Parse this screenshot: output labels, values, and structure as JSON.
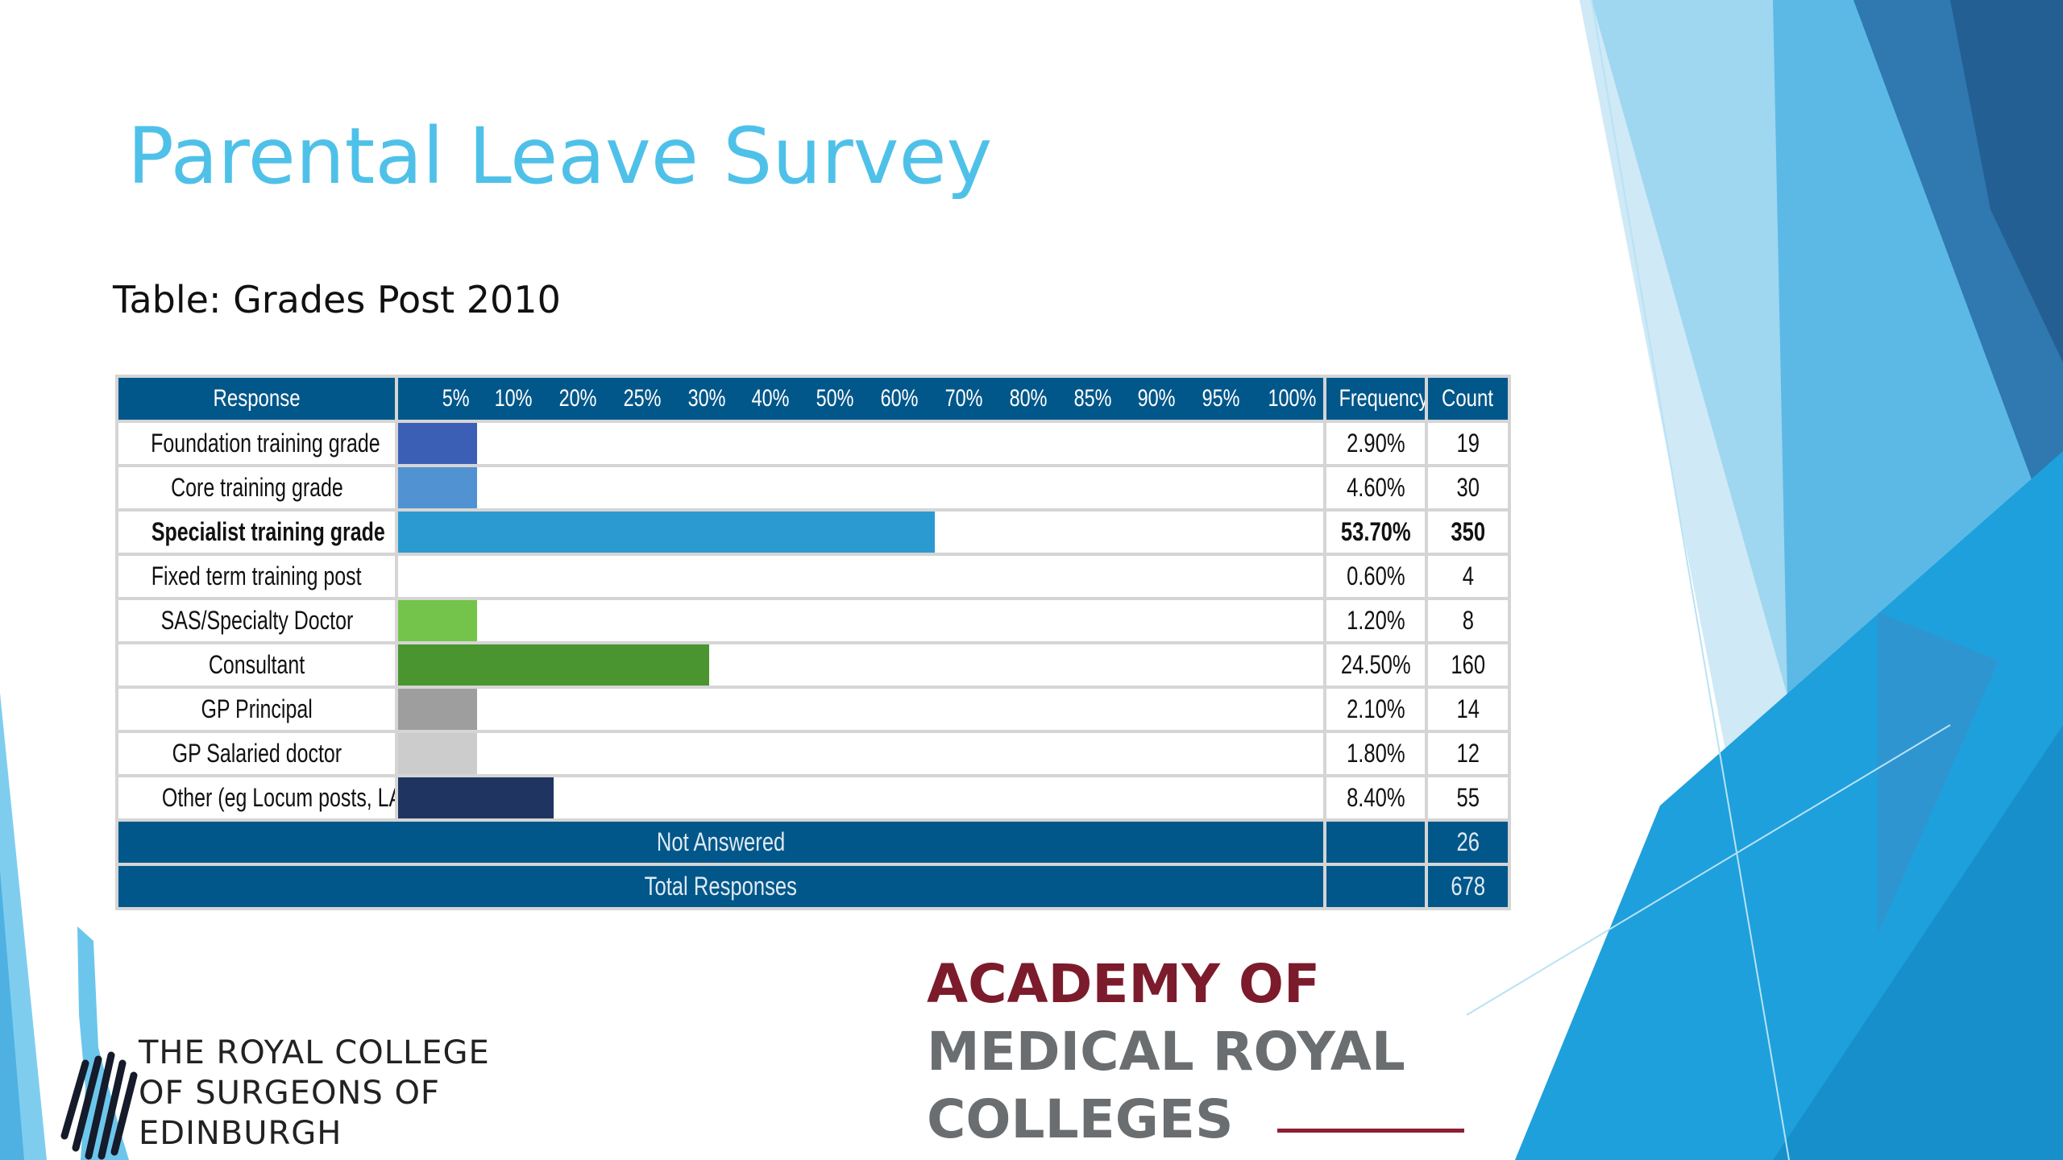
{
  "slide": {
    "title": "Parental Leave Survey",
    "subtitle": "Table: Grades Post 2010"
  },
  "table": {
    "headers": {
      "response": "Response",
      "scale": [
        "5%",
        "10%",
        "20%",
        "25%",
        "30%",
        "40%",
        "50%",
        "60%",
        "70%",
        "80%",
        "85%",
        "90%",
        "95%",
        "100%"
      ],
      "frequency": "Frequency",
      "count": "Count"
    },
    "rows": [
      {
        "label": "Foundation training grade",
        "frequency": "2.90%",
        "count": "19",
        "bar_fraction": 0.085,
        "color": "#3c5fb6",
        "bold": false
      },
      {
        "label": "Core training grade",
        "frequency": "4.60%",
        "count": "30",
        "bar_fraction": 0.085,
        "color": "#5192d3",
        "bold": false
      },
      {
        "label": "Specialist training grade",
        "frequency": "53.70%",
        "count": "350",
        "bar_fraction": 0.58,
        "color": "#2a9ad1",
        "bold": true
      },
      {
        "label": "Fixed term training post",
        "frequency": "0.60%",
        "count": "4",
        "bar_fraction": 0,
        "color": "#2a9ad1",
        "bold": false
      },
      {
        "label": "SAS/Specialty Doctor",
        "frequency": "1.20%",
        "count": "8",
        "bar_fraction": 0.085,
        "color": "#74c44b",
        "bold": false
      },
      {
        "label": "Consultant",
        "frequency": "24.50%",
        "count": "160",
        "bar_fraction": 0.336,
        "color": "#4a9530",
        "bold": false
      },
      {
        "label": "GP Principal",
        "frequency": "2.10%",
        "count": "14",
        "bar_fraction": 0.085,
        "color": "#9e9e9e",
        "bold": false
      },
      {
        "label": "GP Salaried doctor",
        "frequency": "1.80%",
        "count": "12",
        "bar_fraction": 0.085,
        "color": "#cccccc",
        "bold": false
      },
      {
        "label": "Other (eg Locum posts, LATs, post",
        "frequency": "8.40%",
        "count": "55",
        "bar_fraction": 0.168,
        "color": "#1f3461",
        "bold": false
      }
    ],
    "footer": {
      "not_answered_label": "Not Answered",
      "not_answered_count": "26",
      "total_label": "Total Responses",
      "total_count": "678"
    }
  },
  "logos": {
    "rcs": [
      "THE ROYAL COLLEGE",
      "OF SURGEONS OF",
      "EDINBURGH"
    ],
    "amrc": [
      "ACADEMY OF",
      "MEDICAL ROYAL",
      "COLLEGES"
    ]
  },
  "colors": {
    "title": "#4fc1e9",
    "header_bg": "#02578a",
    "amrc_red": "#7b1b2c",
    "amrc_grey": "#6b6e70"
  }
}
